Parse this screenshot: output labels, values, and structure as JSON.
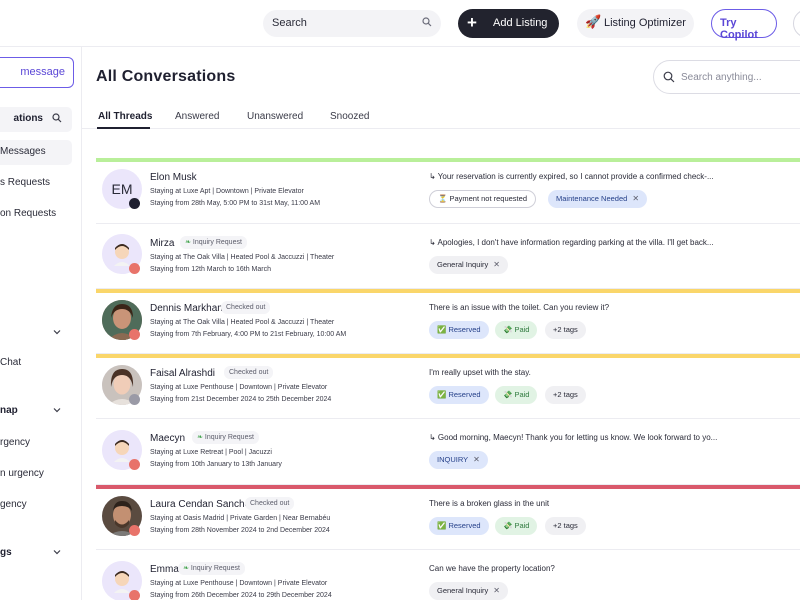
{
  "header": {
    "search_placeholder": "Search",
    "add_listing_label": "Add Listing",
    "listing_optimizer_label": "Listing Optimizer",
    "try_copilot_label": "Try Copilot"
  },
  "sidebar": {
    "new_message_label": "message",
    "conversations_label": "ations",
    "items": [
      {
        "label": "Messages"
      },
      {
        "label": "s Requests"
      },
      {
        "label": "on Requests"
      }
    ],
    "chat_label": "Chat",
    "group_map_label": "nap",
    "urgency_items": [
      {
        "label": "rgency"
      },
      {
        "label": "n urgency"
      },
      {
        "label": "gency"
      }
    ],
    "group_settings_label": "gs"
  },
  "main": {
    "title": "All Conversations",
    "search_placeholder": "Search anything...",
    "tabs": [
      {
        "label": "All Threads",
        "active": true
      },
      {
        "label": "Answered"
      },
      {
        "label": "Unanswered"
      },
      {
        "label": "Snoozed"
      }
    ]
  },
  "colors": {
    "green_bar": "#b9ef9a",
    "yellow_bar": "#fad66a",
    "red_bar": "#d9596b",
    "accent": "#6c5ce7"
  },
  "conversations": [
    {
      "name": "Elon Musk",
      "avatar_initials": "EM",
      "line1": "Staying at Luxe Apt | Downtown | Private Elevator",
      "line2": "Staying from 28th May, 5:00 PM to 31st May, 11:00 AM",
      "message": "↳ Your reservation is currently expired, so I cannot provide a confirmed check-...",
      "tags": [
        {
          "label": "Payment not requested",
          "icon": "hourglass-icon"
        },
        {
          "label": "Maintenance Needed",
          "removable": true
        }
      ]
    },
    {
      "name": "Mirza",
      "badge": "Inquiry Request",
      "line1": "Staying at The Oak Villa | Heated Pool & Jaccuzzi | Theater",
      "line2": "Staying from 12th March to 16th March",
      "message": "↳ Apologies, I don't have information regarding parking at the villa. I'll get back...",
      "tags": [
        {
          "label": "General Inquiry",
          "removable": true
        }
      ]
    },
    {
      "name": "Dennis Markham",
      "badge": "Checked out",
      "line1": "Staying at The Oak Villa | Heated Pool & Jaccuzzi | Theater",
      "line2": "Staying from 7th February, 4:00 PM to 21st February, 10:00 AM",
      "message": "There is an issue with the toilet. Can you review it?",
      "tags": [
        {
          "label": "Reserved",
          "icon": "check-icon"
        },
        {
          "label": "Paid",
          "icon": "money-icon"
        },
        {
          "label": "+2 tags"
        }
      ]
    },
    {
      "name": "Faisal Alrashdi",
      "badge": "Checked out",
      "line1": "Staying at Luxe Penthouse | Downtown | Private Elevator",
      "line2": "Staying from 21st December 2024 to 25th December 2024",
      "message": "I'm really upset with the stay.",
      "tags": [
        {
          "label": "Reserved",
          "icon": "check-icon"
        },
        {
          "label": "Paid",
          "icon": "money-icon"
        },
        {
          "label": "+2 tags"
        }
      ]
    },
    {
      "name": "Maecyn",
      "badge": "Inquiry Request",
      "line1": "Staying at Luxe Retreat | Pool | Jacuzzi",
      "line2": "Staying from 10th January to 13th January",
      "message": "↳ Good morning, Maecyn! Thank you for letting us know. We look forward to yo...",
      "tags": [
        {
          "label": "INQUIRY",
          "removable": true
        }
      ]
    },
    {
      "name": "Laura Cendan Sanchez",
      "badge": "Checked out",
      "line1": "Staying at Oasis Madrid | Private Garden | Near Bernabéu",
      "line2": "Staying from 28th November 2024 to 2nd December 2024",
      "message": "There is a broken glass in the unit",
      "tags": [
        {
          "label": "Reserved",
          "icon": "check-icon"
        },
        {
          "label": "Paid",
          "icon": "money-icon"
        },
        {
          "label": "+2 tags"
        }
      ]
    },
    {
      "name": "Emma",
      "badge": "Inquiry Request",
      "line1": "Staying at Luxe Penthouse | Downtown | Private Elevator",
      "line2": "Staying from 26th December 2024 to 29th December 2024",
      "message": "Can we have the property location?",
      "tags": [
        {
          "label": "General Inquiry",
          "removable": true
        }
      ]
    }
  ]
}
